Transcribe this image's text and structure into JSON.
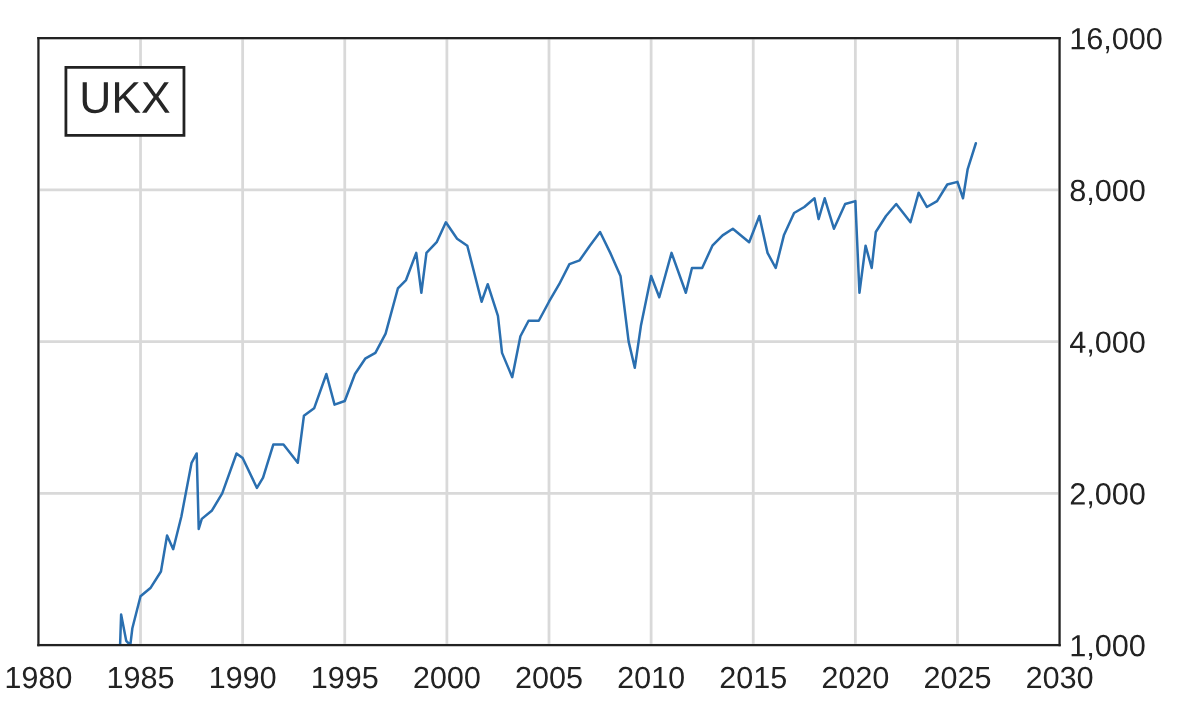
{
  "chart_data": {
    "type": "line",
    "annotations": [
      "UKX"
    ],
    "x": [
      1984.0,
      1984.05,
      1984.3,
      1984.5,
      1984.6,
      1985.0,
      1985.5,
      1986.0,
      1986.3,
      1986.6,
      1987.0,
      1987.5,
      1987.75,
      1987.85,
      1988.0,
      1988.5,
      1989.0,
      1989.7,
      1990.0,
      1990.7,
      1991.0,
      1991.5,
      1992.0,
      1992.7,
      1993.0,
      1993.5,
      1994.1,
      1994.5,
      1995.0,
      1995.5,
      1996.0,
      1996.5,
      1997.0,
      1997.6,
      1998.0,
      1998.5,
      1998.75,
      1999.0,
      1999.5,
      1999.95,
      2000.5,
      2001.0,
      2001.7,
      2002.0,
      2002.5,
      2002.7,
      2003.2,
      2003.6,
      2004.0,
      2004.5,
      2005.0,
      2005.5,
      2006.0,
      2006.5,
      2007.0,
      2007.5,
      2008.0,
      2008.5,
      2008.9,
      2009.2,
      2009.5,
      2010.0,
      2010.4,
      2011.0,
      2011.7,
      2012.0,
      2012.5,
      2013.0,
      2013.5,
      2014.0,
      2014.8,
      2015.3,
      2015.7,
      2016.1,
      2016.5,
      2017.0,
      2017.5,
      2018.0,
      2018.2,
      2018.5,
      2018.95,
      2019.5,
      2020.0,
      2020.2,
      2020.5,
      2020.8,
      2021.0,
      2021.5,
      2022.0,
      2022.7,
      2023.1,
      2023.5,
      2024.0,
      2024.5,
      2025.0,
      2025.27,
      2025.5,
      2025.9
    ],
    "series": [
      {
        "color": "#2a6fb0",
        "values": [
          1000,
          1150,
          1020,
          1000,
          1080,
          1250,
          1300,
          1400,
          1650,
          1550,
          1800,
          2300,
          2400,
          1700,
          1780,
          1850,
          2000,
          2400,
          2350,
          2050,
          2150,
          2500,
          2500,
          2300,
          2850,
          2950,
          3450,
          3000,
          3050,
          3450,
          3700,
          3800,
          4150,
          5100,
          5300,
          6000,
          5000,
          6000,
          6300,
          6900,
          6400,
          6200,
          4800,
          5200,
          4500,
          3800,
          3400,
          4100,
          4400,
          4400,
          4800,
          5200,
          5700,
          5800,
          6200,
          6600,
          6000,
          5400,
          4000,
          3550,
          4300,
          5400,
          4900,
          6000,
          5000,
          5600,
          5600,
          6200,
          6500,
          6700,
          6300,
          7100,
          6000,
          5600,
          6500,
          7200,
          7400,
          7700,
          7000,
          7700,
          6700,
          7500,
          7600,
          5000,
          6200,
          5600,
          6600,
          7100,
          7500,
          6900,
          7900,
          7400,
          7600,
          8200,
          8300,
          7700,
          8800,
          9900
        ]
      }
    ],
    "log": "y",
    "xlim": [
      1980,
      2030
    ],
    "xticks": [
      1980,
      1985,
      1990,
      1995,
      2000,
      2005,
      2010,
      2015,
      2020,
      2025,
      2030
    ],
    "ylim": [
      1000,
      16000
    ],
    "yticks": [
      {
        "value": 1000,
        "label": "1,000"
      },
      {
        "value": 2000,
        "label": "2,000"
      },
      {
        "value": 4000,
        "label": "4,000"
      },
      {
        "value": 8000,
        "label": "8,000"
      },
      {
        "value": 16000,
        "label": "16,000"
      }
    ],
    "grid": true
  }
}
